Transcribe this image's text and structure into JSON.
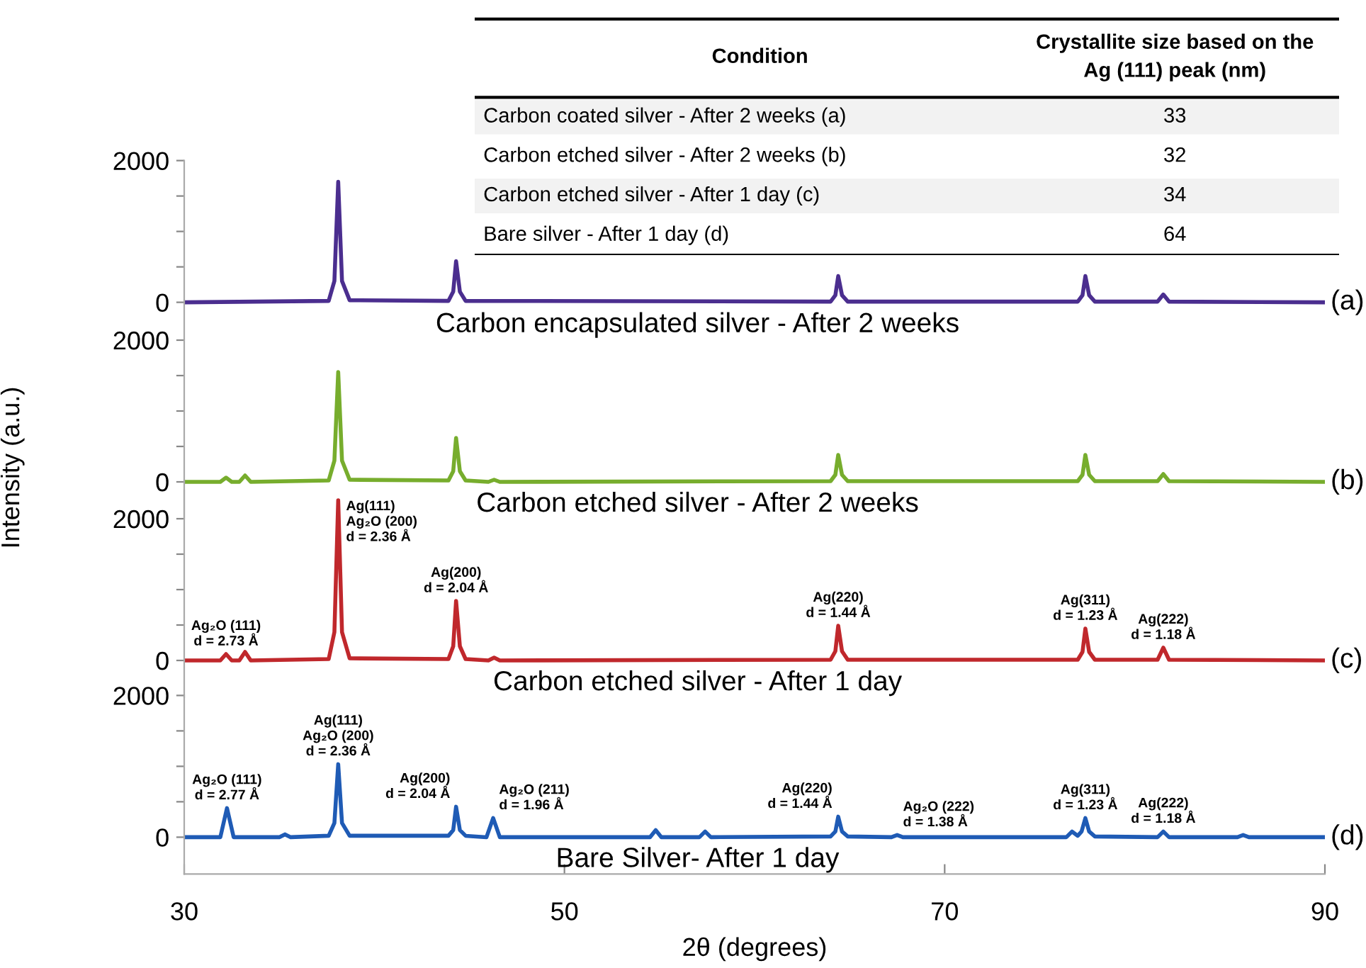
{
  "chart_data": [
    {
      "type": "line",
      "title": "Carbon encapsulated silver - After 2 weeks",
      "xlim": [
        30,
        90
      ],
      "ylim": [
        -520,
        2000
      ],
      "yticks": [
        0,
        {
          "value": 500,
          "label": null
        },
        {
          "value": 1000,
          "label": null
        },
        {
          "value": 1500,
          "label": null
        },
        2000
      ],
      "tick_labels": "y",
      "grid": false,
      "annotations": [
        "(a)"
      ],
      "series": [
        {
          "color": "#4b2e8f",
          "x": [
            30,
            37.6,
            37.9,
            38.1,
            38.3,
            38.7,
            43.9,
            44.15,
            44.3,
            44.5,
            44.8,
            64.0,
            64.25,
            64.4,
            64.6,
            64.9,
            77.0,
            77.25,
            77.4,
            77.6,
            77.9,
            81.2,
            81.5,
            81.8,
            90
          ],
          "values": [
            0,
            20,
            300,
            1700,
            300,
            30,
            20,
            150,
            580,
            150,
            20,
            10,
            100,
            370,
            100,
            10,
            10,
            100,
            370,
            100,
            10,
            10,
            110,
            10,
            0
          ]
        }
      ]
    },
    {
      "type": "line",
      "title": "Carbon etched silver - After 2 weeks",
      "ylabel": "Intensity (a.u.)",
      "xlim": [
        30,
        90
      ],
      "ylim": [
        -520,
        2000
      ],
      "yticks": [
        0,
        {
          "value": 500,
          "label": null
        },
        {
          "value": 1000,
          "label": null
        },
        {
          "value": 1500,
          "label": null
        },
        2000
      ],
      "tick_labels": "y",
      "grid": false,
      "annotations": [
        "(b)"
      ],
      "series": [
        {
          "color": "#77ad2d",
          "x": [
            30,
            31.9,
            32.2,
            32.5,
            32.9,
            33.2,
            33.5,
            37.6,
            37.9,
            38.1,
            38.3,
            38.7,
            43.9,
            44.15,
            44.3,
            44.5,
            44.8,
            46.0,
            46.3,
            46.6,
            64.0,
            64.25,
            64.4,
            64.6,
            64.9,
            77.0,
            77.25,
            77.4,
            77.6,
            77.9,
            81.2,
            81.5,
            81.8,
            90
          ],
          "values": [
            0,
            0,
            60,
            0,
            0,
            90,
            0,
            20,
            300,
            1550,
            300,
            30,
            20,
            150,
            620,
            150,
            20,
            0,
            30,
            0,
            10,
            100,
            380,
            100,
            10,
            10,
            100,
            380,
            100,
            10,
            10,
            110,
            10,
            0
          ]
        }
      ]
    },
    {
      "type": "line",
      "title": "Carbon etched silver - After 1 day",
      "xlim": [
        30,
        90
      ],
      "ylim": [
        -520,
        2400
      ],
      "yticks": [
        0,
        {
          "value": 500,
          "label": null
        },
        {
          "value": 1000,
          "label": null
        },
        {
          "value": 1500,
          "label": null
        },
        2000
      ],
      "tick_labels": "y",
      "grid": false,
      "annotations": [
        "(c)",
        {
          "text": "Ag₂O (111)\nd = 2.73 Å",
          "x": 32.2,
          "y": 90
        },
        {
          "text": "Ag(111)\nAg₂O (200)\nd = 2.36 Å",
          "x": 38.1,
          "y": 2260
        },
        {
          "text": "Ag(200)\nd = 2.04 Å",
          "x": 44.3,
          "y": 840
        },
        {
          "text": "Ag(220)\nd = 1.44 Å",
          "x": 64.4,
          "y": 490
        },
        {
          "text": "Ag(311)\nd = 1.23 Å",
          "x": 77.4,
          "y": 450
        },
        {
          "text": "Ag(222)\nd = 1.18 Å",
          "x": 81.5,
          "y": 180
        }
      ],
      "series": [
        {
          "color": "#c0282c",
          "x": [
            30,
            31.9,
            32.2,
            32.5,
            32.9,
            33.2,
            33.5,
            37.6,
            37.9,
            38.1,
            38.3,
            38.7,
            43.9,
            44.15,
            44.3,
            44.5,
            44.8,
            46.0,
            46.3,
            46.6,
            64.0,
            64.25,
            64.4,
            64.6,
            64.9,
            77.0,
            77.25,
            77.4,
            77.6,
            77.9,
            81.2,
            81.5,
            81.8,
            90
          ],
          "values": [
            0,
            0,
            90,
            0,
            0,
            120,
            0,
            20,
            400,
            2260,
            400,
            30,
            20,
            200,
            840,
            200,
            20,
            0,
            40,
            0,
            10,
            130,
            490,
            130,
            10,
            10,
            120,
            450,
            120,
            10,
            10,
            180,
            10,
            0
          ]
        }
      ]
    },
    {
      "type": "line",
      "title": "Bare Silver- After 1 day",
      "xlabel": "2θ (degrees)",
      "xlim": [
        30,
        90
      ],
      "xticks": [
        30,
        50,
        70,
        90
      ],
      "ylim": [
        -520,
        2000
      ],
      "yticks": [
        0,
        {
          "value": 500,
          "label": null
        },
        {
          "value": 1000,
          "label": null
        },
        {
          "value": 1500,
          "label": null
        },
        2000
      ],
      "grid": false,
      "annotations": [
        "(d)",
        {
          "text": "Ag₂O (111)\nd = 2.77 Å",
          "x": 32.25,
          "y": 410
        },
        {
          "text": "Ag(111)\nAg₂O (200)\nd = 2.36 Å",
          "x": 38.1,
          "y": 1030
        },
        {
          "text": "Ag(200)\nd = 2.04 Å",
          "x": 44.3,
          "y": 430
        },
        {
          "text": "Ag₂O (211)\nd = 1.96 Å",
          "x": 46.25,
          "y": 270
        },
        {
          "text": "Ag(220)\nd = 1.44 Å",
          "x": 64.4,
          "y": 290
        },
        {
          "text": "Ag₂O (222)\nd = 1.38 Å",
          "x": 67.5,
          "y": 30
        },
        {
          "text": "Ag(311)\nd = 1.23 Å",
          "x": 77.4,
          "y": 270
        },
        {
          "text": "Ag(222)\nd = 1.18 Å",
          "x": 81.5,
          "y": 80
        }
      ],
      "series": [
        {
          "color": "#1f5bb5",
          "x": [
            30,
            31.9,
            32.25,
            32.6,
            35.0,
            35.3,
            35.6,
            37.6,
            37.9,
            38.1,
            38.3,
            38.7,
            43.9,
            44.15,
            44.3,
            44.5,
            44.8,
            45.9,
            46.25,
            46.6,
            54.5,
            54.8,
            55.1,
            57.1,
            57.4,
            57.7,
            64.0,
            64.25,
            64.4,
            64.6,
            64.9,
            67.2,
            67.5,
            67.8,
            76.4,
            76.7,
            77.0,
            77.2,
            77.4,
            77.6,
            77.9,
            81.2,
            81.5,
            81.8,
            85.4,
            85.7,
            86.0,
            90
          ],
          "values": [
            0,
            0,
            410,
            0,
            0,
            40,
            0,
            20,
            200,
            1030,
            200,
            20,
            20,
            100,
            430,
            100,
            20,
            0,
            270,
            0,
            0,
            100,
            0,
            0,
            80,
            0,
            10,
            80,
            290,
            80,
            10,
            0,
            30,
            0,
            0,
            80,
            20,
            80,
            270,
            80,
            10,
            0,
            80,
            0,
            0,
            30,
            0,
            0
          ]
        }
      ]
    },
    {
      "type": "other",
      "categories": [
        "Carbon coated silver - After 2 weeks (a)",
        "Carbon etched silver - After 2 weeks (b)",
        "Carbon etched silver - After 1 day (c)",
        "Bare silver - After 1 day (d)"
      ],
      "values": [
        33,
        32,
        34,
        64
      ],
      "data_labels": true,
      "annotations": [
        "Condition",
        "Crystallite size based on the\nAg (111) peak (nm)"
      ]
    }
  ]
}
